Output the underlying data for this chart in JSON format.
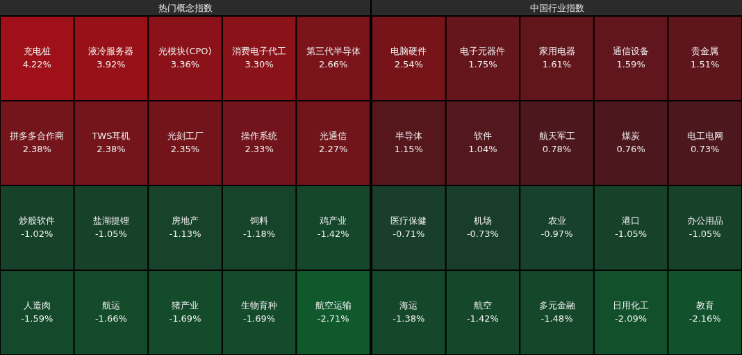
{
  "chart_data": [
    {
      "type": "other",
      "title": "热门概念指数",
      "categories": [
        "充电桩",
        "液冷服务器",
        "光模块(CPO)",
        "消费电子代工",
        "第三代半导体",
        "拼多多合作商",
        "TWS耳机",
        "光刻工厂",
        "操作系统",
        "光通信",
        "炒股软件",
        "盐湖提锂",
        "房地产",
        "饲料",
        "鸡产业",
        "人造肉",
        "航运",
        "猪产业",
        "生物育种",
        "航空运输"
      ],
      "values": [
        4.22,
        3.92,
        3.36,
        3.3,
        2.66,
        2.38,
        2.38,
        2.35,
        2.33,
        2.27,
        -1.02,
        -1.05,
        -1.13,
        -1.18,
        -1.42,
        -1.59,
        -1.66,
        -1.69,
        -1.69,
        -2.71
      ],
      "value_labels": [
        "4.22%",
        "3.92%",
        "3.36%",
        "3.30%",
        "2.66%",
        "2.38%",
        "2.38%",
        "2.35%",
        "2.33%",
        "2.27%",
        "-1.02%",
        "-1.05%",
        "-1.13%",
        "-1.18%",
        "-1.42%",
        "-1.59%",
        "-1.66%",
        "-1.69%",
        "-1.69%",
        "-2.71%"
      ]
    },
    {
      "type": "other",
      "title": "中国行业指数",
      "categories": [
        "电脑硬件",
        "电子元器件",
        "家用电器",
        "通信设备",
        "贵金属",
        "半导体",
        "软件",
        "航天军工",
        "煤炭",
        "电工电网",
        "医疗保健",
        "机场",
        "农业",
        "港口",
        "办公用品",
        "海运",
        "航空",
        "多元金融",
        "日用化工",
        "教育"
      ],
      "values": [
        2.54,
        1.75,
        1.61,
        1.59,
        1.51,
        1.15,
        1.04,
        0.78,
        0.76,
        0.73,
        -0.71,
        -0.73,
        -0.97,
        -1.05,
        -1.05,
        -1.38,
        -1.42,
        -1.48,
        -2.09,
        -2.16
      ],
      "value_labels": [
        "2.54%",
        "1.75%",
        "1.61%",
        "1.59%",
        "1.51%",
        "1.15%",
        "1.04%",
        "0.78%",
        "0.76%",
        "0.73%",
        "-0.71%",
        "-0.73%",
        "-0.97%",
        "-1.05%",
        "-1.05%",
        "-1.38%",
        "-1.42%",
        "-1.48%",
        "-2.09%",
        "-2.16%"
      ]
    }
  ]
}
